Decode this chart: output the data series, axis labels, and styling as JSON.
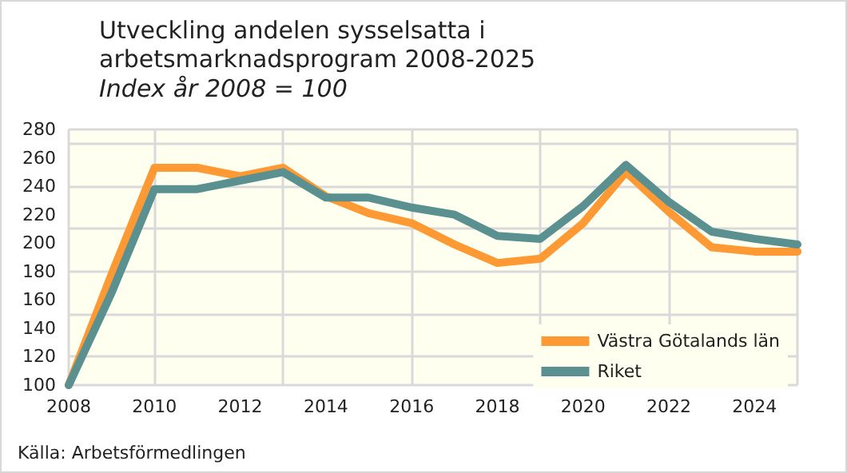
{
  "chart_data": {
    "type": "line",
    "title": "Utveckling andelen sysselsatta i\narbetsmarknadsprogram 2008-2025",
    "subtitle": "Index år 2008 = 100",
    "x": [
      2008,
      2009,
      2010,
      2011,
      2012,
      2013,
      2014,
      2015,
      2016,
      2017,
      2018,
      2019,
      2020,
      2021,
      2022,
      2023,
      2024,
      2025
    ],
    "series": [
      {
        "name": "Västra Götalands län",
        "color": "#ff9933",
        "values": [
          100,
          178,
          253,
          253,
          247,
          253,
          233,
          221,
          214,
          199,
          186,
          189,
          214,
          250,
          222,
          197,
          194,
          194
        ]
      },
      {
        "name": "Riket",
        "color": "#5b9090",
        "values": [
          100,
          165,
          238,
          238,
          244,
          250,
          232,
          232,
          225,
          220,
          205,
          203,
          226,
          255,
          229,
          208,
          203,
          199
        ]
      }
    ],
    "xlim": [
      2008,
      2025
    ],
    "xticks": [
      2008,
      2010,
      2012,
      2014,
      2016,
      2018,
      2020,
      2022,
      2024
    ],
    "ylim": [
      100,
      280
    ],
    "yticks": [
      100,
      120,
      140,
      160,
      180,
      200,
      220,
      240,
      260,
      280
    ],
    "grid": true,
    "legend": "bottom right",
    "marker": "none",
    "line_style": "solid",
    "annotations": [
      "Källa: Arbetsförmedlingen"
    ]
  }
}
